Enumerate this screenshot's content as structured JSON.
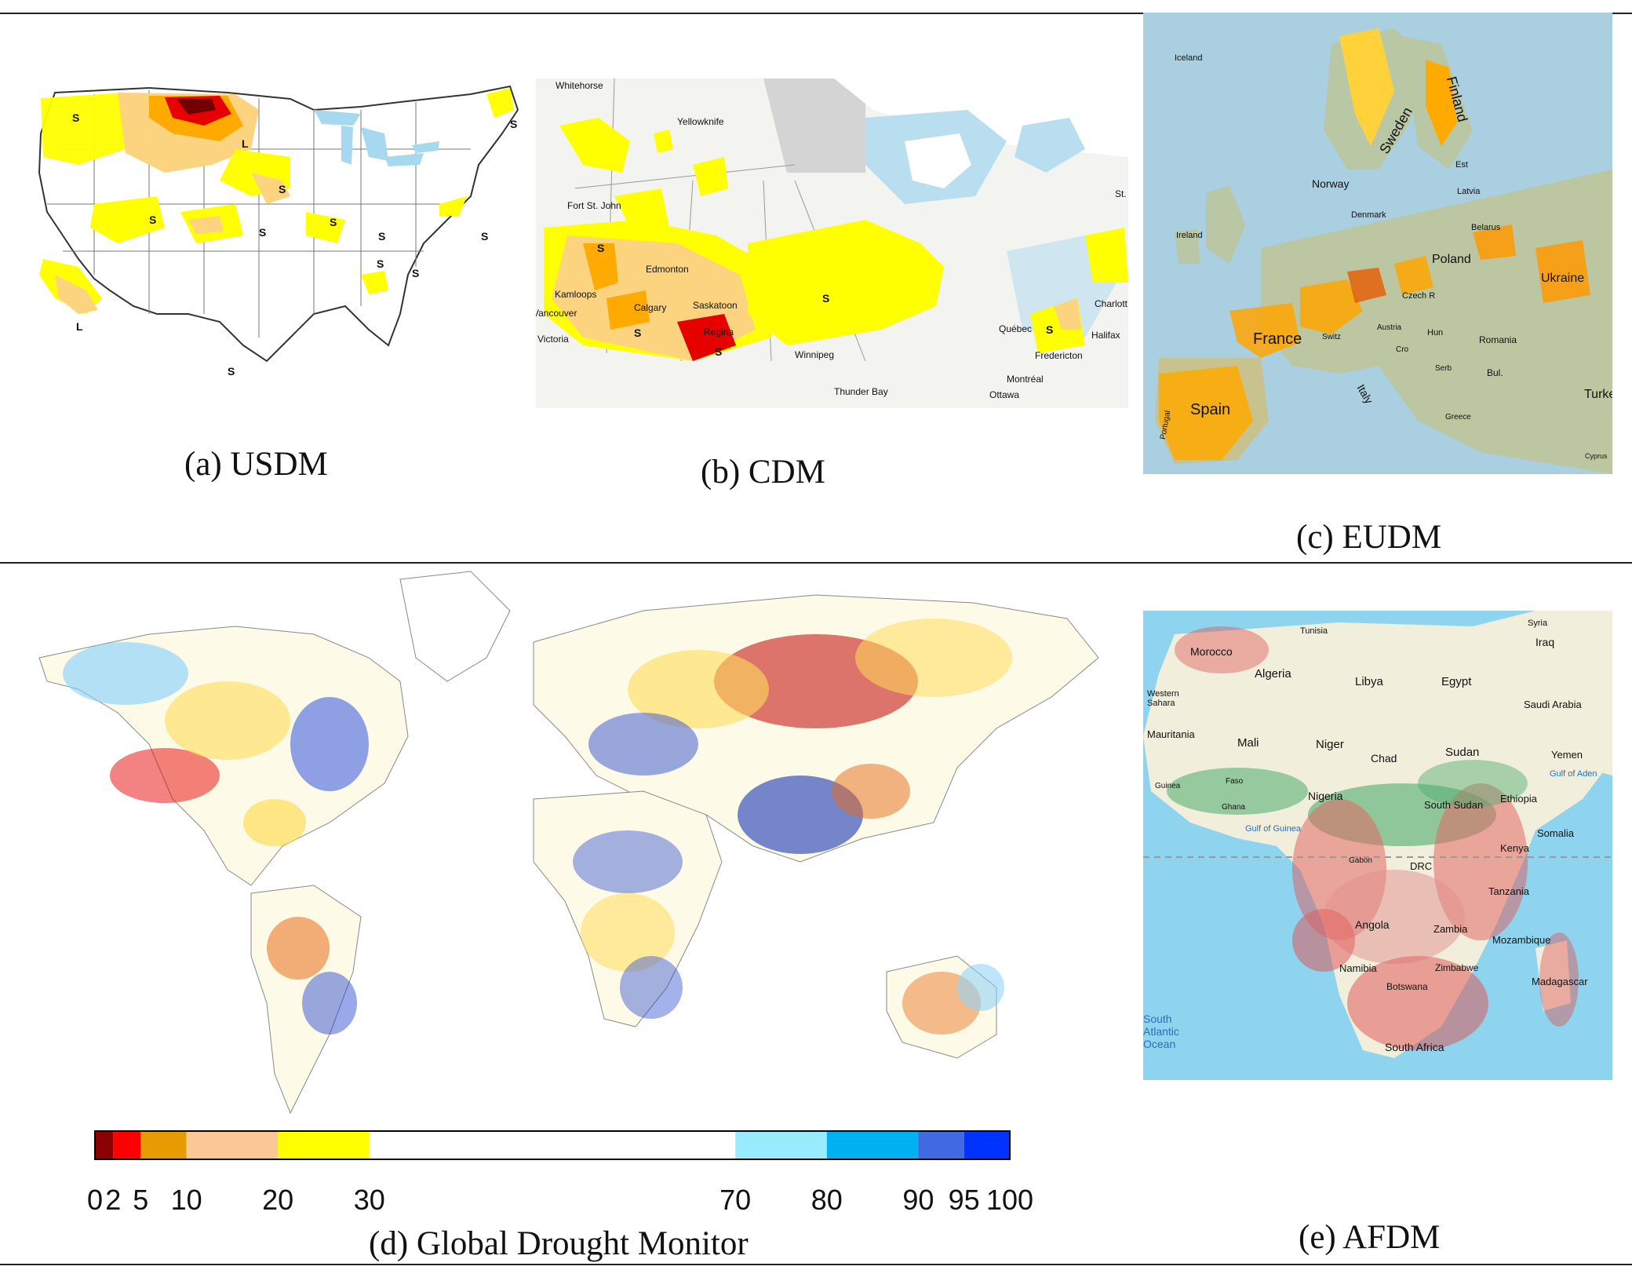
{
  "panels": {
    "a": {
      "caption": "(a) USDM",
      "labels": [
        "S",
        "S",
        "S",
        "S",
        "S",
        "S",
        "S",
        "S",
        "S",
        "S",
        "S",
        "L",
        "L"
      ]
    },
    "b": {
      "caption": "(b) CDM",
      "cities": [
        "Whitehorse",
        "Yellowknife",
        "Fort St. John",
        "Edmonton",
        "Kamloops",
        "Calgary",
        "Saskatoon",
        "Regina",
        "Vancouver",
        "Victoria",
        "Winnipeg",
        "Thunder Bay",
        "Québec",
        "Fredericton",
        "Montréal",
        "Ottawa",
        "Halifax",
        "Charlott",
        "St."
      ],
      "labels": [
        "S",
        "S",
        "S",
        "S",
        "S"
      ]
    },
    "c": {
      "caption": "(c) EUDM",
      "labels": [
        "Iceland",
        "Sweden",
        "Finland",
        "Norway",
        "Est",
        "Latvia",
        "Belarus",
        "Ireland",
        "Denmark",
        "Poland",
        "Czech R",
        "Ukraine",
        "France",
        "Switz",
        "Austria",
        "Hun",
        "Romania",
        "Cro",
        "Serb",
        "Bul.",
        "Italy",
        "Spain",
        "Portugal",
        "Greece",
        "Turke",
        "Cyprus"
      ]
    },
    "d": {
      "caption": "(d) Global Drought Monitor",
      "colorbar": {
        "ticks": [
          "0",
          "2",
          "5",
          "10",
          "20",
          "30",
          "70",
          "80",
          "90",
          "95",
          "100"
        ]
      }
    },
    "e": {
      "caption": "(e) AFDM",
      "labels": [
        "Tunisia",
        "Syria",
        "Morocco",
        "Iraq",
        "Algeria",
        "Libya",
        "Egypt",
        "Western Sahara",
        "Saudi Arabia",
        "Mauritania",
        "Mali",
        "Niger",
        "Chad",
        "Sudan",
        "Yemen",
        "Gulf of Aden",
        "Guinea",
        "Faso",
        "Nigeria",
        "South Sudan",
        "Ethiopia",
        "Ghana",
        "Gulf of Guinea",
        "Somalia",
        "Kenya",
        "Gabon",
        "DRC",
        "Tanzania",
        "Angola",
        "Zambia",
        "Mozambique",
        "Namibia",
        "Zimbabwe",
        "Madagascar",
        "Botswana",
        "South Atlantic Ocean",
        "South Africa"
      ]
    }
  },
  "colors": {
    "d0": "#ffff00",
    "d1": "#fcd37f",
    "d2": "#ffaa00",
    "d3": "#e60000",
    "d4": "#730000",
    "water": "#b8def0",
    "land": "#f7f7f2",
    "cb": [
      "#8b0000",
      "#ff0000",
      "#e69b00",
      "#fcc796",
      "#ffff00",
      "#ffffff",
      "#99ecff",
      "#00b0f0",
      "#4169e1",
      "#0033ff",
      "#001a7a"
    ]
  }
}
